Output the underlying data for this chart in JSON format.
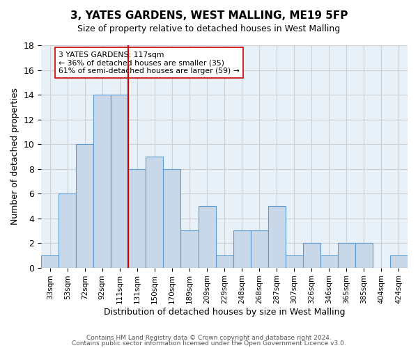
{
  "title": "3, YATES GARDENS, WEST MALLING, ME19 5FP",
  "subtitle": "Size of property relative to detached houses in West Malling",
  "xlabel": "Distribution of detached houses by size in West Malling",
  "ylabel": "Number of detached properties",
  "bar_labels": [
    "33sqm",
    "53sqm",
    "72sqm",
    "92sqm",
    "111sqm",
    "131sqm",
    "150sqm",
    "170sqm",
    "189sqm",
    "209sqm",
    "229sqm",
    "248sqm",
    "268sqm",
    "287sqm",
    "307sqm",
    "326sqm",
    "346sqm",
    "365sqm",
    "385sqm",
    "404sqm",
    "424sqm"
  ],
  "bar_heights": [
    1,
    6,
    10,
    14,
    14,
    8,
    9,
    8,
    3,
    5,
    1,
    3,
    3,
    5,
    1,
    2,
    1,
    2,
    2,
    0,
    1
  ],
  "bar_color": "#c8d8e8",
  "bar_edgecolor": "#5b9bd5",
  "ylim": [
    0,
    18
  ],
  "yticks": [
    0,
    2,
    4,
    6,
    8,
    10,
    12,
    14,
    16,
    18
  ],
  "property_line_x": 4.5,
  "property_line_color": "#cc0000",
  "annotation_title": "3 YATES GARDENS: 117sqm",
  "annotation_line1": "← 36% of detached houses are smaller (35)",
  "annotation_line2": "61% of semi-detached houses are larger (59) →",
  "annotation_box_color": "#ffffff",
  "annotation_box_edgecolor": "#cc0000",
  "footer_line1": "Contains HM Land Registry data © Crown copyright and database right 2024.",
  "footer_line2": "Contains public sector information licensed under the Open Government Licence v3.0.",
  "background_color": "#ffffff",
  "grid_color": "#d0d0d0"
}
